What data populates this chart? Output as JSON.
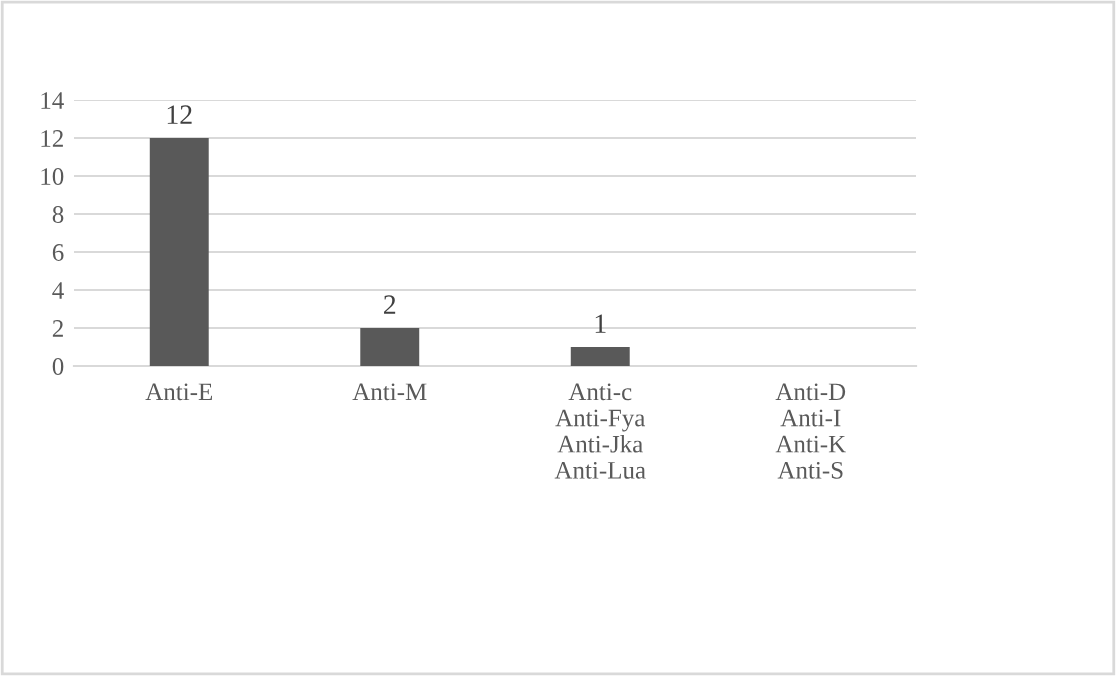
{
  "chart_data": {
    "type": "bar",
    "categories": [
      "Anti-E",
      "Anti-M",
      "Anti-c\nAnti-Fya\nAnti-Jka\nAnti-Lua",
      "Anti-D\nAnti-I\nAnti-K\nAnti-S"
    ],
    "values": [
      12,
      2,
      1,
      0
    ],
    "value_labels": [
      "12",
      "2",
      "1",
      null
    ],
    "color": "#595959",
    "ylim": [
      0,
      14
    ],
    "yticks": [
      0,
      2,
      4,
      6,
      8,
      10,
      12,
      14
    ],
    "grid": "y"
  }
}
